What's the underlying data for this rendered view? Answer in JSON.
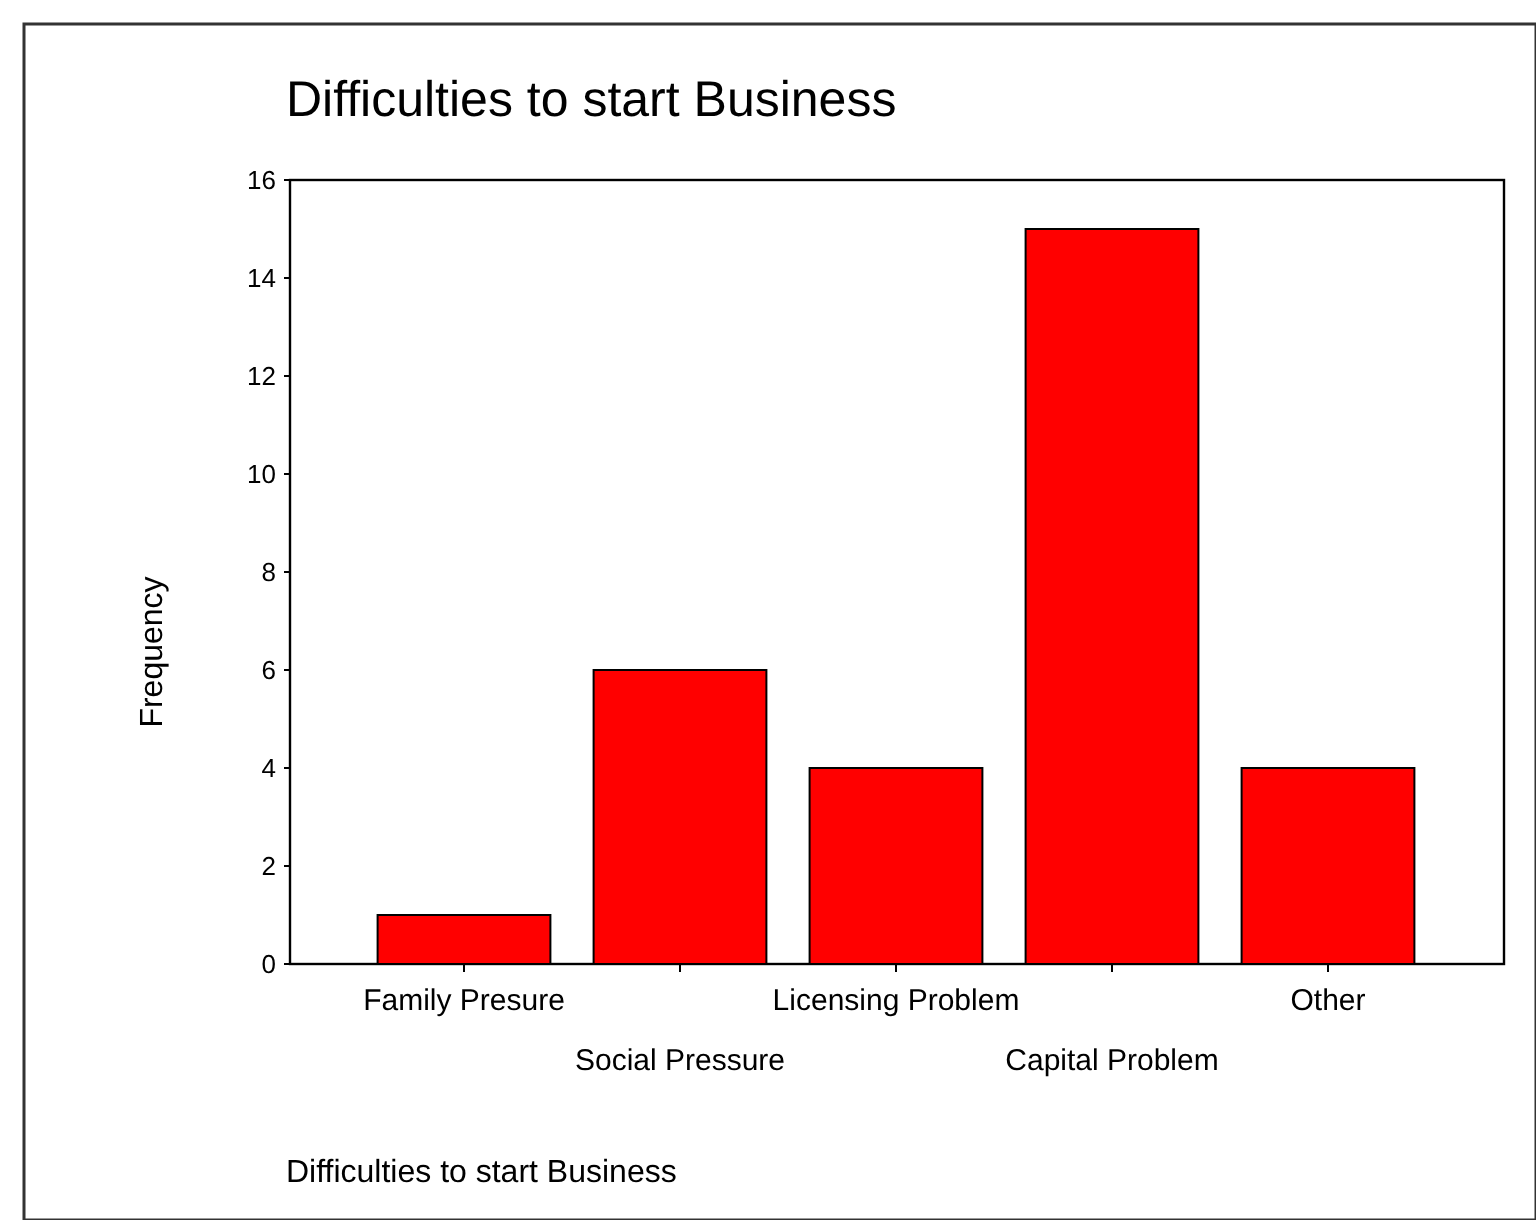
{
  "chart_data": {
    "type": "bar",
    "title": "Difficulties to start Business",
    "xlabel": "Difficulties to start Business",
    "ylabel": "Frequency",
    "categories": [
      "Family Presure",
      "Social Pressure",
      "Licensing Problem",
      "Capital Problem",
      "Other"
    ],
    "values": [
      1,
      6,
      4,
      15,
      4
    ],
    "color": "#ff0000",
    "ylim": [
      0,
      16
    ],
    "yticks": [
      0,
      2,
      4,
      6,
      8,
      10,
      12,
      14,
      16
    ],
    "grid": false
  }
}
